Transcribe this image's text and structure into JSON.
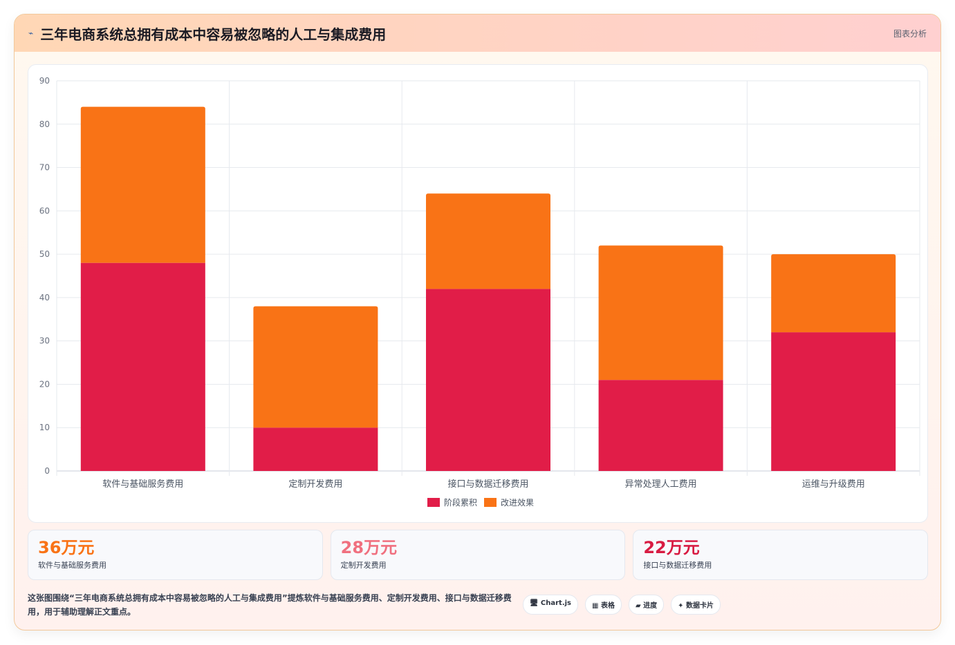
{
  "header": {
    "icon": "chart-icon",
    "title": "三年电商系统总拥有成本中容易被忽略的人工与集成费用",
    "tag": "图表分析"
  },
  "chart_data": {
    "type": "bar",
    "stacked": true,
    "categories": [
      "软件与基础服务费用",
      "定制开发费用",
      "接口与数据迁移费用",
      "异常处理人工费用",
      "运维与升级费用"
    ],
    "series": [
      {
        "name": "阶段累积",
        "color": "#e11d48",
        "values": [
          48,
          10,
          42,
          21,
          32
        ]
      },
      {
        "name": "改进效果",
        "color": "#f97316",
        "values": [
          36,
          28,
          22,
          31,
          18
        ]
      }
    ],
    "ylim": [
      0,
      90
    ],
    "yticks": [
      0,
      10,
      20,
      30,
      40,
      50,
      60,
      70,
      80,
      90
    ],
    "grid": true,
    "legend_position": "bottom"
  },
  "stats": [
    {
      "value": "36万元",
      "label": "软件与基础服务费用",
      "color": "#f97316"
    },
    {
      "value": "28万元",
      "label": "定制开发费用",
      "color": "#f0707f"
    },
    {
      "value": "22万元",
      "label": "接口与数据迁移费用",
      "color": "#d81b42"
    }
  ],
  "footer": {
    "description": "这张图围绕“三年电商系统总拥有成本中容易被忽略的人工与集成费用”提炼软件与基础服务费用、定制开发费用、接口与数据迁移费用，用于辅助理解正文重点。",
    "chips": [
      "🖥 Chart.js",
      "▦ 表格",
      "▰ 进度",
      "✦ 数据卡片"
    ]
  }
}
